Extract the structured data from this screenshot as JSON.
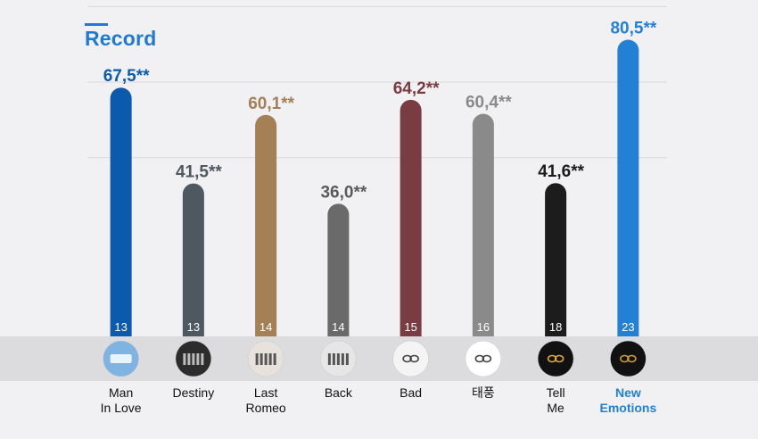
{
  "title": "Record",
  "chart_data": {
    "type": "bar",
    "ylim": [
      0,
      100
    ],
    "grid": true,
    "categories": [
      "Man\nIn Love",
      "Destiny",
      "Last\nRomeo",
      "Back",
      "Bad",
      "태풍",
      "Tell\nMe",
      "New\nEmotions"
    ],
    "value_labels": [
      "67,5**",
      "41,5**",
      "60,1**",
      "36,0**",
      "64,2**",
      "60,4**",
      "41,6**",
      "80,5**"
    ],
    "values": [
      67.5,
      41.5,
      60.1,
      36.0,
      64.2,
      60.4,
      41.6,
      80.5
    ],
    "counts": [
      "13",
      "13",
      "14",
      "14",
      "15",
      "16",
      "18",
      "23"
    ],
    "colors": [
      "#0b5aad",
      "#4e5860",
      "#a57f55",
      "#6a6a6a",
      "#7a3c43",
      "#8a8a8a",
      "#1c1c1c",
      "#2281d4"
    ],
    "label_colors": [
      "#0b5aad",
      "#4e5860",
      "#a57f55",
      "#5a5a5a",
      "#7a3c43",
      "#8a8a8a",
      "#1c1c1c",
      "#2281d4"
    ],
    "category_label_colors": [
      "#111111",
      "#111111",
      "#111111",
      "#111111",
      "#111111",
      "#111111",
      "#111111",
      "#2281d4"
    ],
    "icons": [
      "album-man-in-love-icon",
      "album-destiny-icon",
      "album-last-romeo-icon",
      "album-back-icon",
      "album-bad-icon",
      "album-taepung-icon",
      "album-tell-me-icon",
      "album-new-emotions-icon"
    ]
  }
}
